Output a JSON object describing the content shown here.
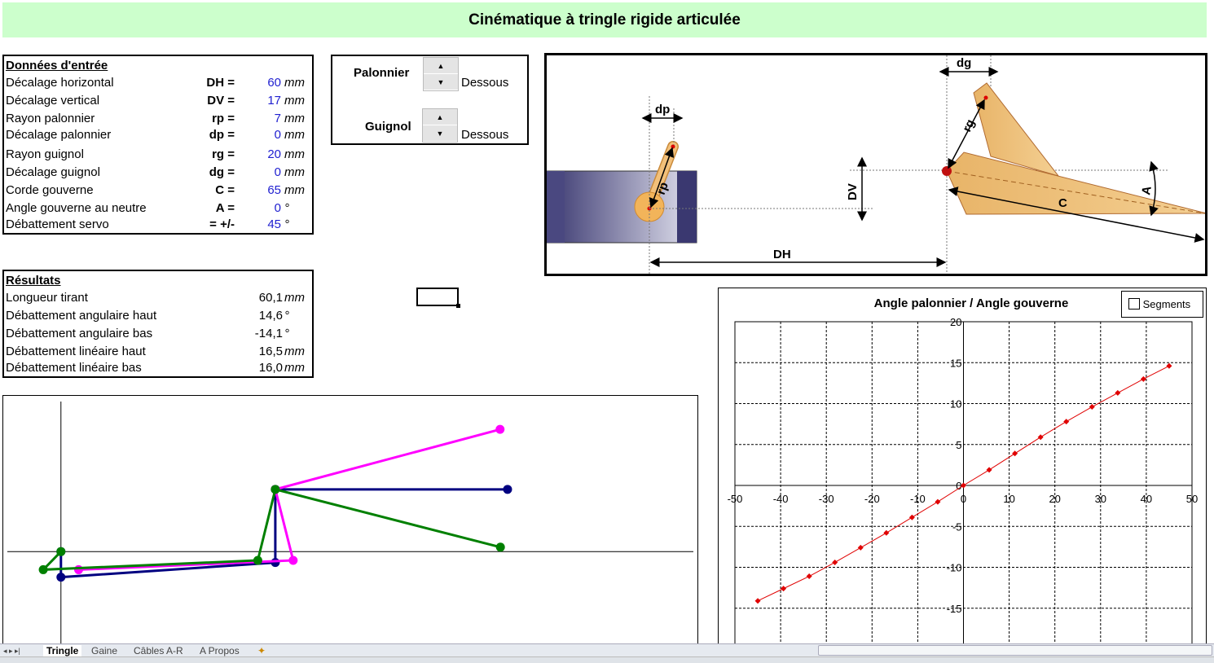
{
  "title": "Cinématique à tringle rigide articulée",
  "inputs": {
    "header": "Données d'entrée",
    "rows": [
      {
        "label": "Décalage horizontal",
        "symbol": "DH =",
        "value": "60",
        "unit": "mm"
      },
      {
        "label": "Décalage vertical",
        "symbol": "DV =",
        "value": "17",
        "unit": "mm"
      },
      {
        "label": "Rayon palonnier",
        "symbol": "rp =",
        "value": "7",
        "unit": "mm"
      },
      {
        "label": "Décalage palonnier",
        "symbol": "dp =",
        "value": "0",
        "unit": "mm"
      },
      {
        "label": "Rayon guignol",
        "symbol": "rg =",
        "value": "20",
        "unit": "mm"
      },
      {
        "label": "Décalage guignol",
        "symbol": "dg =",
        "value": "0",
        "unit": "mm"
      },
      {
        "label": "Corde gouverne",
        "symbol": "C =",
        "value": "65",
        "unit": "mm"
      },
      {
        "label": "Angle gouverne au neutre",
        "symbol": "A =",
        "value": "0",
        "unit": "°"
      },
      {
        "label": "Débattement servo",
        "symbol": "= +/-",
        "value": "45",
        "unit": "°"
      }
    ]
  },
  "controls": {
    "palonnier_label": "Palonnier",
    "palonnier_value": "Dessous",
    "guignol_label": "Guignol",
    "guignol_value": "Dessous",
    "up": "▲",
    "down": "▼"
  },
  "results": {
    "header": "Résultats",
    "rows": [
      {
        "label": "Longueur tirant",
        "value": "60,1",
        "unit": "mm"
      },
      {
        "label": "Débattement angulaire haut",
        "value": "14,6",
        "unit": "°"
      },
      {
        "label": "Débattement angulaire bas",
        "value": "-14,1",
        "unit": "°"
      },
      {
        "label": "Débattement linéaire haut",
        "value": "16,5",
        "unit": "mm"
      },
      {
        "label": "Débattement linéaire bas",
        "value": "16,0",
        "unit": "mm"
      }
    ]
  },
  "diagram": {
    "labels": {
      "dp": "dp",
      "rp": "rp",
      "DV": "DV",
      "DH": "DH",
      "dg": "dg",
      "rg": "rg",
      "C": "C",
      "A": "A"
    }
  },
  "chart_data": [
    {
      "type": "line",
      "title": "",
      "grid": false,
      "series": [
        {
          "color": "#000080",
          "points": [
            [
              0,
              0
            ],
            [
              0,
              -7
            ],
            [
              60,
              -3
            ],
            [
              60,
              17
            ],
            [
              125,
              17
            ]
          ]
        },
        {
          "color": "#ff00ff",
          "points": [
            [
              4.95,
              -4.95
            ],
            [
              65,
              -2.4
            ],
            [
              60,
              17
            ],
            [
              122.9,
              33.4
            ]
          ]
        },
        {
          "color": "#008000",
          "points": [
            [
              0,
              0
            ],
            [
              -4.95,
              -4.95
            ],
            [
              55.1,
              -2.4
            ],
            [
              60,
              17
            ],
            [
              123,
              1.2
            ]
          ]
        }
      ],
      "xlim": [
        -15,
        177
      ],
      "ylim": [
        -26,
        41
      ]
    },
    {
      "type": "line",
      "title": "Angle palonnier / Angle gouverne",
      "checkbox_label": "Segments",
      "checkbox_checked": false,
      "x": [
        -45,
        -39.375,
        -33.75,
        -28.125,
        -22.5,
        -16.875,
        -11.25,
        -5.625,
        0,
        5.625,
        11.25,
        16.875,
        22.5,
        28.125,
        33.75,
        39.375,
        45
      ],
      "y": [
        -14.1,
        -12.6,
        -11.1,
        -9.4,
        -7.6,
        -5.8,
        -3.9,
        -2.0,
        0,
        1.9,
        3.9,
        5.9,
        7.8,
        9.6,
        11.3,
        13.0,
        14.6
      ],
      "color": "#e00000",
      "xlim": [
        -50,
        50
      ],
      "ylim": [
        -20,
        20
      ],
      "xticks": [
        "-50",
        "-40",
        "-30",
        "-20",
        "-10",
        "0",
        "10",
        "20",
        "30",
        "40",
        "50"
      ],
      "yticks": [
        "20",
        "15",
        "10",
        "5",
        "0",
        "-5",
        "-10",
        "-15"
      ],
      "grid": true
    }
  ],
  "tabs": [
    "Tringle",
    "Gaine",
    "Câbles A-R",
    "A Propos"
  ],
  "active_tab": "Tringle"
}
